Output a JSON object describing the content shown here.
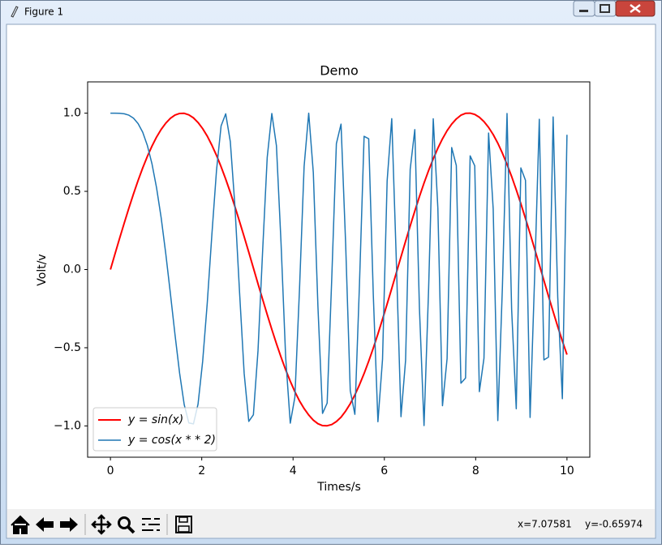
{
  "window": {
    "title": "Figure 1",
    "status_x": "x=7.07581",
    "status_y": "y=-0.65974"
  },
  "chart_data": {
    "type": "line",
    "title": "Demo",
    "x_label": "Times/s",
    "y_label": "Volt/v",
    "xlim": [
      -0.5,
      10.5
    ],
    "ylim": [
      -1.2,
      1.2
    ],
    "xticks": [
      0,
      2,
      4,
      6,
      8,
      10
    ],
    "yticks": [
      {
        "value": -1.0,
        "label": "−1.0"
      },
      {
        "value": -0.5,
        "label": "−0.5"
      },
      {
        "value": 0.0,
        "label": "0.0"
      },
      {
        "value": 0.5,
        "label": "0.5"
      },
      {
        "value": 1.0,
        "label": "1.0"
      }
    ],
    "legend": "lower left",
    "x": [
      0,
      0.101,
      0.202,
      0.303,
      0.404,
      0.505,
      0.606,
      0.707,
      0.808,
      0.909,
      1.01,
      1.111,
      1.212,
      1.313,
      1.414,
      1.515,
      1.616,
      1.717,
      1.818,
      1.919,
      2.02,
      2.121,
      2.222,
      2.323,
      2.424,
      2.525,
      2.626,
      2.727,
      2.828,
      2.929,
      3.03,
      3.131,
      3.232,
      3.333,
      3.434,
      3.535,
      3.636,
      3.737,
      3.838,
      3.939,
      4.04,
      4.141,
      4.242,
      4.343,
      4.444,
      4.545,
      4.646,
      4.747,
      4.848,
      4.949,
      5.051,
      5.152,
      5.253,
      5.354,
      5.455,
      5.556,
      5.657,
      5.758,
      5.859,
      5.96,
      6.061,
      6.162,
      6.263,
      6.364,
      6.465,
      6.566,
      6.667,
      6.768,
      6.869,
      6.97,
      7.071,
      7.172,
      7.273,
      7.374,
      7.475,
      7.576,
      7.677,
      7.778,
      7.879,
      7.98,
      8.081,
      8.182,
      8.283,
      8.384,
      8.485,
      8.586,
      8.687,
      8.788,
      8.889,
      8.99,
      9.091,
      9.192,
      9.293,
      9.394,
      9.495,
      9.596,
      9.697,
      9.798,
      9.899,
      10
    ],
    "series": [
      {
        "name": "y = sin(x)",
        "color": "#ff0000",
        "values": [
          0,
          0.101,
          0.201,
          0.298,
          0.393,
          0.484,
          0.57,
          0.65,
          0.723,
          0.789,
          0.847,
          0.896,
          0.936,
          0.967,
          0.988,
          0.998,
          0.999,
          0.989,
          0.97,
          0.94,
          0.901,
          0.853,
          0.795,
          0.73,
          0.657,
          0.578,
          0.493,
          0.402,
          0.307,
          0.21,
          0.111,
          0.01,
          -0.091,
          -0.19,
          -0.288,
          -0.383,
          -0.474,
          -0.56,
          -0.641,
          -0.714,
          -0.781,
          -0.84,
          -0.889,
          -0.93,
          -0.963,
          -0.986,
          -0.998,
          -0.999,
          -0.991,
          -0.972,
          -0.944,
          -0.905,
          -0.858,
          -0.802,
          -0.737,
          -0.665,
          -0.586,
          -0.502,
          -0.412,
          -0.317,
          -0.22,
          -0.121,
          -0.02,
          0.081,
          0.181,
          0.279,
          0.374,
          0.466,
          0.553,
          0.634,
          0.708,
          0.776,
          0.836,
          0.888,
          0.93,
          0.963,
          0.987,
          0.999,
          1.0,
          0.992,
          0.974,
          0.946,
          0.909,
          0.863,
          0.808,
          0.744,
          0.672,
          0.595,
          0.51,
          0.421,
          0.327,
          0.23,
          0.131,
          0.031,
          -0.07,
          -0.171,
          -0.269,
          -0.365,
          -0.457,
          -0.544
        ]
      },
      {
        "name": "y = cos(x * * 2)",
        "color": "#1f77b4",
        "values": [
          1,
          1.0,
          0.999,
          0.996,
          0.987,
          0.968,
          0.933,
          0.878,
          0.794,
          0.677,
          0.523,
          0.331,
          0.101,
          -0.153,
          -0.416,
          -0.663,
          -0.864,
          -0.981,
          -0.987,
          -0.86,
          -0.587,
          -0.213,
          0.224,
          0.633,
          0.919,
          0.996,
          0.817,
          0.404,
          -0.145,
          -0.664,
          -0.971,
          -0.929,
          -0.52,
          0.115,
          0.717,
          0.998,
          0.792,
          0.168,
          -0.561,
          -0.982,
          -0.816,
          -0.127,
          0.659,
          1.0,
          0.619,
          -0.238,
          -0.92,
          -0.854,
          -0.054,
          0.805,
          0.93,
          0.165,
          -0.775,
          -0.926,
          -0.093,
          0.852,
          0.836,
          -0.163,
          -0.973,
          -0.574,
          0.568,
          0.965,
          0.049,
          -0.941,
          -0.58,
          0.642,
          0.895,
          -0.246,
          -0.998,
          -0.117,
          0.964,
          0.392,
          -0.871,
          -0.57,
          0.78,
          0.665,
          -0.727,
          -0.694,
          0.727,
          0.663,
          -0.781,
          -0.567,
          0.873,
          0.387,
          -0.966,
          -0.11,
          0.998,
          -0.255,
          -0.89,
          0.65,
          0.571,
          -0.946,
          -0.034,
          0.961,
          -0.578,
          -0.56,
          0.976,
          -0.179,
          -0.826,
          0.862
        ]
      }
    ]
  }
}
